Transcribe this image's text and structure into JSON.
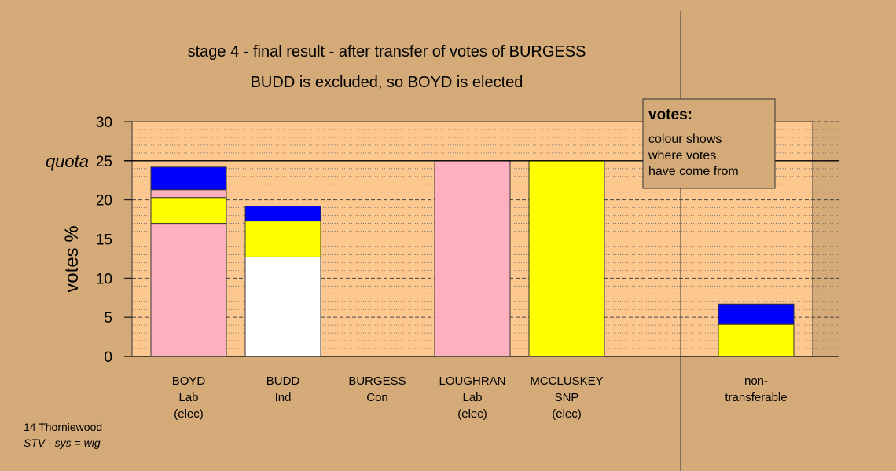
{
  "chart_data": {
    "type": "bar",
    "title": "stage 4 - final result - after transfer of votes of BURGESS",
    "subtitle": "BUDD is excluded, so BOYD is elected",
    "ylabel": "votes %",
    "ylim": [
      0,
      30
    ],
    "yticks": [
      "0",
      "5",
      "10",
      "15",
      "20",
      "25",
      "30"
    ],
    "quota_label": "quota",
    "quota_value": 25,
    "categories": [
      {
        "lines": [
          "BOYD",
          "Lab",
          "(elec)"
        ]
      },
      {
        "lines": [
          "BUDD",
          "Ind"
        ]
      },
      {
        "lines": [
          "BURGESS",
          "Con"
        ]
      },
      {
        "lines": [
          "LOUGHRAN",
          "Lab",
          "(elec)"
        ]
      },
      {
        "lines": [
          "MCCLUSKEY",
          "SNP",
          "(elec)"
        ]
      },
      {
        "lines": [
          "non-",
          "transferable"
        ]
      }
    ],
    "stacks": [
      [
        {
          "color": "#ffb0c0",
          "value": 17.0
        },
        {
          "color": "#ffff00",
          "value": 3.3
        },
        {
          "color": "#ffb0c0",
          "value": 1.0
        },
        {
          "color": "#0000ff",
          "value": 2.9
        }
      ],
      [
        {
          "color": "#ffffff",
          "value": 12.7
        },
        {
          "color": "#ffff00",
          "value": 4.6
        },
        {
          "color": "#0000ff",
          "value": 1.9
        }
      ],
      [],
      [
        {
          "color": "#ffb0c0",
          "value": 25.0
        }
      ],
      [
        {
          "color": "#ffff00",
          "value": 25.0
        }
      ],
      [
        {
          "color": "#ffff00",
          "value": 4.1
        },
        {
          "color": "#0000ff",
          "value": 2.6
        }
      ]
    ]
  },
  "legend": {
    "heading": "votes:",
    "lines": [
      "colour shows",
      "where votes",
      "have come from"
    ]
  },
  "footer": {
    "line1": "14 Thorniewood",
    "line2": "STV - sys = wig"
  },
  "colors": {
    "background": "#d4aa78",
    "plot_area": "#fcc890"
  }
}
